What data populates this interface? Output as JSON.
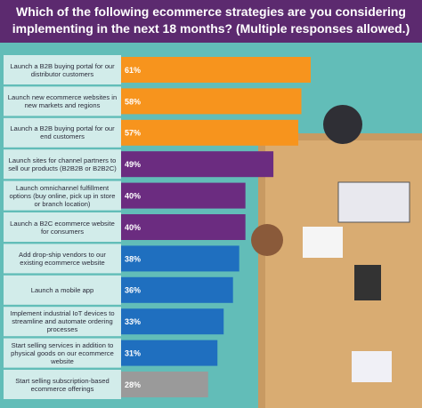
{
  "chart_data": {
    "type": "bar",
    "orientation": "horizontal",
    "title": "Which of the following ecommerce strategies are you considering implementing in the next 18 months? (Multiple responses allowed.)",
    "categories": [
      "Launch a B2B buying portal for our distributor customers",
      "Launch new ecommerce websites in new markets and regions",
      "Launch a B2B buying portal for our end customers",
      "Launch sites for channel partners to sell our products (B2B2B or B2B2C)",
      "Launch omnichannel fulfillment options (buy online, pick up in store or branch location)",
      "Launch a B2C ecommerce website for consumers",
      "Add drop-ship vendors to our existing ecommerce website",
      "Launch a mobile app",
      "Implement industrial IoT devices to streamline and automate ordering processes",
      "Start selling services in addition to physical goods on our ecommerce website",
      "Start selling subscription-based ecommerce offerings"
    ],
    "values": [
      61,
      58,
      57,
      49,
      40,
      40,
      38,
      36,
      33,
      31,
      28
    ],
    "value_labels": [
      "61%",
      "58%",
      "57%",
      "49%",
      "40%",
      "40%",
      "38%",
      "36%",
      "33%",
      "31%",
      "28%"
    ],
    "colors": [
      "#f7941d",
      "#f7941d",
      "#f7941d",
      "#6b2c80",
      "#6b2c80",
      "#6b2c80",
      "#1f6fbf",
      "#1f6fbf",
      "#1f6fbf",
      "#1f6fbf",
      "#9a9a9a"
    ]
  }
}
